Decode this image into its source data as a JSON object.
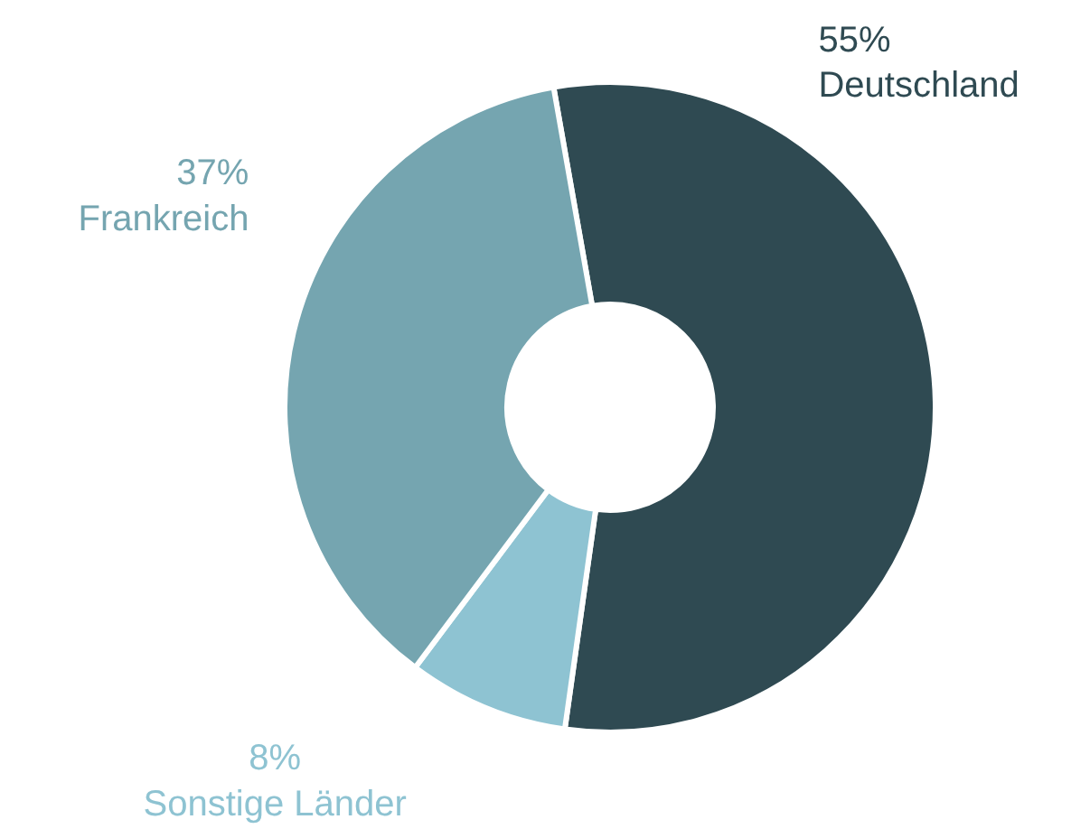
{
  "chart_data": {
    "type": "donut",
    "categories": [
      "Deutschland",
      "Sonstige Länder",
      "Frankreich"
    ],
    "values": [
      55,
      8,
      37
    ],
    "colors": [
      "#2f4a52",
      "#8ec3d2",
      "#75a5b0"
    ],
    "value_labels": [
      "55%",
      "8%",
      "37%"
    ]
  }
}
